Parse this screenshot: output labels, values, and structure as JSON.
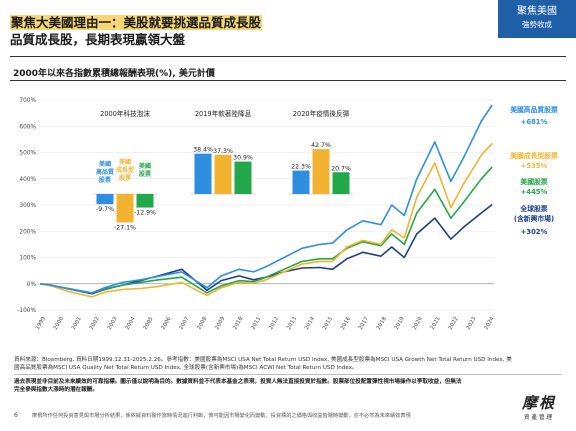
{
  "header": {
    "title_line1": "聚焦大美國理由一：美股就要挑選品質成長股",
    "title_line2": "品質成長股，長期表現贏領大盤",
    "badge_line1": "聚焦美國",
    "badge_line2": "強勢收成"
  },
  "subtitle": "2000年以來各指數累積總報酬表現(%), 美元計價",
  "chart_data": [
    {
      "type": "line",
      "title": "2000年以來各指數累積總報酬表現(%), 美元計價",
      "ylim": [
        -100,
        700
      ],
      "yticks": [
        "-100%",
        "0%",
        "100%",
        "200%",
        "300%",
        "400%",
        "500%",
        "600%",
        "700%"
      ],
      "x_tick_labels": [
        "1999",
        "2000",
        "2001",
        "2002",
        "2003",
        "2004",
        "2005",
        "2006",
        "2007",
        "2008",
        "2009",
        "2010",
        "2011",
        "2012",
        "2013",
        "2014",
        "2015",
        "2016",
        "2017",
        "2018",
        "2019",
        "2020",
        "2021",
        "2022",
        "2023",
        "2024"
      ],
      "x": [
        1999.9,
        2000.5,
        2001.5,
        2002.8,
        2003.5,
        2004.5,
        2005.5,
        2006.5,
        2007.8,
        2009.2,
        2010.0,
        2011.0,
        2011.8,
        2012.5,
        2013.5,
        2014.5,
        2015.5,
        2016.2,
        2017.0,
        2017.9,
        2018.9,
        2019.5,
        2020.2,
        2020.9,
        2021.9,
        2022.8,
        2023.5,
        2024.5,
        2025.1
      ],
      "series": [
        {
          "name": "美國高品質股票",
          "end_label": "+681%",
          "color": "#2e8fe0",
          "values": [
            0,
            -5,
            -20,
            -35,
            -15,
            5,
            15,
            28,
            45,
            -15,
            30,
            55,
            45,
            65,
            100,
            135,
            150,
            155,
            205,
            240,
            225,
            300,
            260,
            400,
            540,
            390,
            480,
            620,
            681
          ]
        },
        {
          "name": "美國成長型股票",
          "end_label": "+535%",
          "color": "#f2b330",
          "values": [
            0,
            -8,
            -30,
            -50,
            -32,
            -22,
            -18,
            -10,
            5,
            -45,
            -15,
            5,
            2,
            15,
            45,
            75,
            85,
            85,
            140,
            165,
            150,
            205,
            175,
            330,
            460,
            290,
            380,
            490,
            535
          ]
        },
        {
          "name": "美國股票",
          "end_label": "+445%",
          "color": "#22a84a",
          "values": [
            0,
            -5,
            -18,
            -35,
            -20,
            -5,
            5,
            15,
            25,
            -35,
            -8,
            12,
            8,
            25,
            55,
            85,
            95,
            95,
            135,
            160,
            145,
            190,
            150,
            270,
            360,
            250,
            310,
            400,
            445
          ]
        },
        {
          "name": "全球股票(含新興市場)",
          "end_label": "+302%",
          "color": "#1e3f8c",
          "values": [
            0,
            -5,
            -20,
            -38,
            -22,
            -5,
            12,
            30,
            55,
            -25,
            12,
            30,
            15,
            25,
            45,
            60,
            62,
            55,
            95,
            120,
            105,
            140,
            100,
            190,
            250,
            170,
            215,
            270,
            302
          ]
        }
      ]
    },
    {
      "type": "bar",
      "title": "2000年科技泡沫",
      "bars": [
        {
          "name": "美國高品質股票",
          "label": "-9.7%",
          "value": -9.7,
          "color": "#2e8fe0"
        },
        {
          "name": "美國成長型股票",
          "label": "-27.1%",
          "value": -27.1,
          "color": "#f2b330"
        },
        {
          "name": "美國股票",
          "label": "-12.9%",
          "value": -12.9,
          "color": "#22a84a"
        }
      ]
    },
    {
      "type": "bar",
      "title": "2019年軟著陸降息",
      "bars": [
        {
          "label": "38.4%",
          "value": 38.4,
          "color": "#2e8fe0"
        },
        {
          "label": "37.3%",
          "value": 37.3,
          "color": "#f2b330"
        },
        {
          "label": "30.9%",
          "value": 30.9,
          "color": "#22a84a"
        }
      ]
    },
    {
      "type": "bar",
      "title": "2020年疫情後反彈",
      "bars": [
        {
          "label": "22.3%",
          "value": 22.3,
          "color": "#2e8fe0"
        },
        {
          "label": "42.7%",
          "value": 42.7,
          "color": "#f2b330"
        },
        {
          "label": "20.7%",
          "value": 20.7,
          "color": "#22a84a"
        }
      ]
    }
  ],
  "footer": {
    "source_line1": "資料來源：Bloomberg, 資料日期1999.12.31-2025.2.26。參考指數：美國股票為MSCI USA Net Total Return USD Index, 美國成長型股票為MSCI USA Growth Net Total Return USD Index, 美",
    "source_line2": "國高品質股票為MSCI USA Quality Net Total Return USD Index, 全球股票(含新興市場)為MSCI ACWI Net Total Return USD Index。",
    "warn_line1": "過去表現並非目前及未來績效的可靠指標。圖示僅以說明為目的。數據資料並不代表本基金之表現，投資人無法直接投資於指數。股票部位投配置彈性視市場操作以爭取收益，但無法",
    "warn_line2": "完全參與指數大漲時的潛在報酬。",
    "page_number": "6",
    "disclaimer": "摩根所作任何投資意見與市場分析結果，係依據資料製作當時情況進行判斷，惟可能因市場變化而變動。投資標的之價格與收益皆隨時變動，亦不必然為未來績效表現",
    "logo_line1": "摩根",
    "logo_line2": "資產管理"
  }
}
